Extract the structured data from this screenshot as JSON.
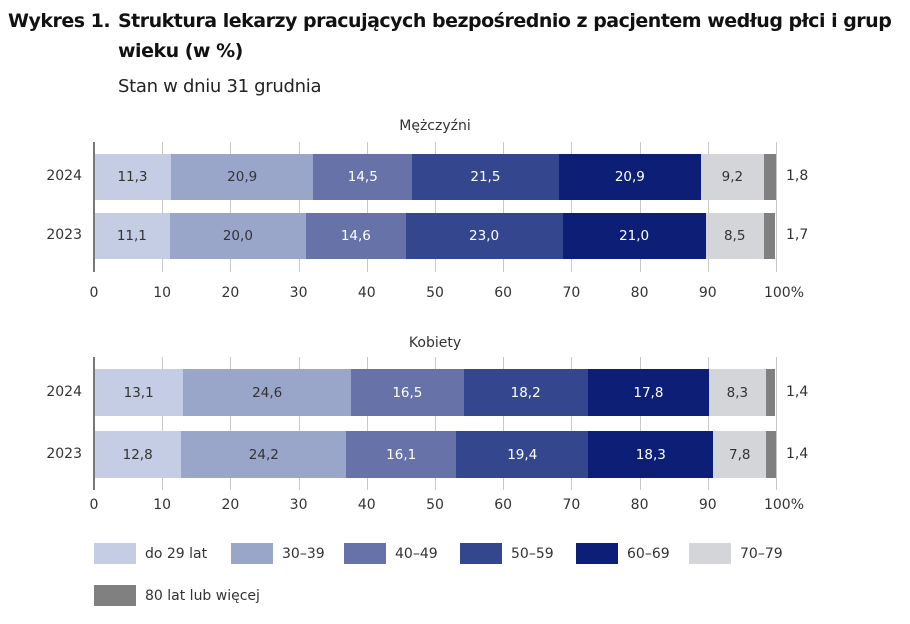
{
  "header": {
    "title_number": "Wykres 1.",
    "title_line1": "Struktura lekarzy pracujących bezpośrednio z pacjentem według płci i grup",
    "title_line2": "wieku (w %)",
    "subtitle": "Stan w dniu 31 grudnia"
  },
  "colors": {
    "do_29": "#c4cde3",
    "30_39": "#99a6ca",
    "40_49": "#6672a8",
    "50_59": "#34478e",
    "60_69": "#0d1e77",
    "70_79": "#d4d5d8",
    "80_plus": "#808080"
  },
  "chart_data": [
    {
      "type": "bar",
      "orientation": "horizontal",
      "stacked": true,
      "title": "Mężczyźni",
      "categories": [
        "2024",
        "2023"
      ],
      "series": [
        {
          "name": "do 29 lat",
          "values": [
            11.3,
            11.1
          ],
          "labels": [
            "11,3",
            "11,1"
          ]
        },
        {
          "name": "30–39",
          "values": [
            20.9,
            20.0
          ],
          "labels": [
            "20,9",
            "20,0"
          ]
        },
        {
          "name": "40–49",
          "values": [
            14.5,
            14.6
          ],
          "labels": [
            "14,5",
            "14,6"
          ]
        },
        {
          "name": "50–59",
          "values": [
            21.5,
            23.0
          ],
          "labels": [
            "21,5",
            "23,0"
          ]
        },
        {
          "name": "60–69",
          "values": [
            20.9,
            21.0
          ],
          "labels": [
            "20,9",
            "21,0"
          ]
        },
        {
          "name": "70–79",
          "values": [
            9.2,
            8.5
          ],
          "labels": [
            "9,2",
            "8,5"
          ]
        },
        {
          "name": "80 lat lub więcej",
          "values": [
            1.8,
            1.7
          ],
          "labels": [
            "1,8",
            "1,7"
          ]
        }
      ],
      "xlim": [
        0,
        100
      ],
      "xticks": [
        "0",
        "10",
        "20",
        "30",
        "40",
        "50",
        "60",
        "70",
        "80",
        "90",
        "100%"
      ],
      "grid": true,
      "legend_position": "bottom"
    },
    {
      "type": "bar",
      "orientation": "horizontal",
      "stacked": true,
      "title": "Kobiety",
      "categories": [
        "2024",
        "2023"
      ],
      "series": [
        {
          "name": "do 29 lat",
          "values": [
            13.1,
            12.8
          ],
          "labels": [
            "13,1",
            "12,8"
          ]
        },
        {
          "name": "30–39",
          "values": [
            24.6,
            24.2
          ],
          "labels": [
            "24,6",
            "24,2"
          ]
        },
        {
          "name": "40–49",
          "values": [
            16.5,
            16.1
          ],
          "labels": [
            "16,5",
            "16,1"
          ]
        },
        {
          "name": "50–59",
          "values": [
            18.2,
            19.4
          ],
          "labels": [
            "18,2",
            "19,4"
          ]
        },
        {
          "name": "60–69",
          "values": [
            17.8,
            18.3
          ],
          "labels": [
            "17,8",
            "18,3"
          ]
        },
        {
          "name": "70–79",
          "values": [
            8.3,
            7.8
          ],
          "labels": [
            "8,3",
            "7,8"
          ]
        },
        {
          "name": "80 lat lub więcej",
          "values": [
            1.4,
            1.4
          ],
          "labels": [
            "1,4",
            "1,4"
          ]
        }
      ],
      "xlim": [
        0,
        100
      ],
      "xticks": [
        "0",
        "10",
        "20",
        "30",
        "40",
        "50",
        "60",
        "70",
        "80",
        "90",
        "100%"
      ],
      "grid": true,
      "legend_position": "bottom"
    }
  ],
  "legend": [
    {
      "label": "do 29 lat",
      "color_key": "do_29"
    },
    {
      "label": "30–39",
      "color_key": "30_39"
    },
    {
      "label": "40–49",
      "color_key": "40_49"
    },
    {
      "label": "50–59",
      "color_key": "50_59"
    },
    {
      "label": "60–69",
      "color_key": "60_69"
    },
    {
      "label": "70–79",
      "color_key": "70_79"
    },
    {
      "label": "80 lat lub więcej",
      "color_key": "80_plus"
    }
  ]
}
